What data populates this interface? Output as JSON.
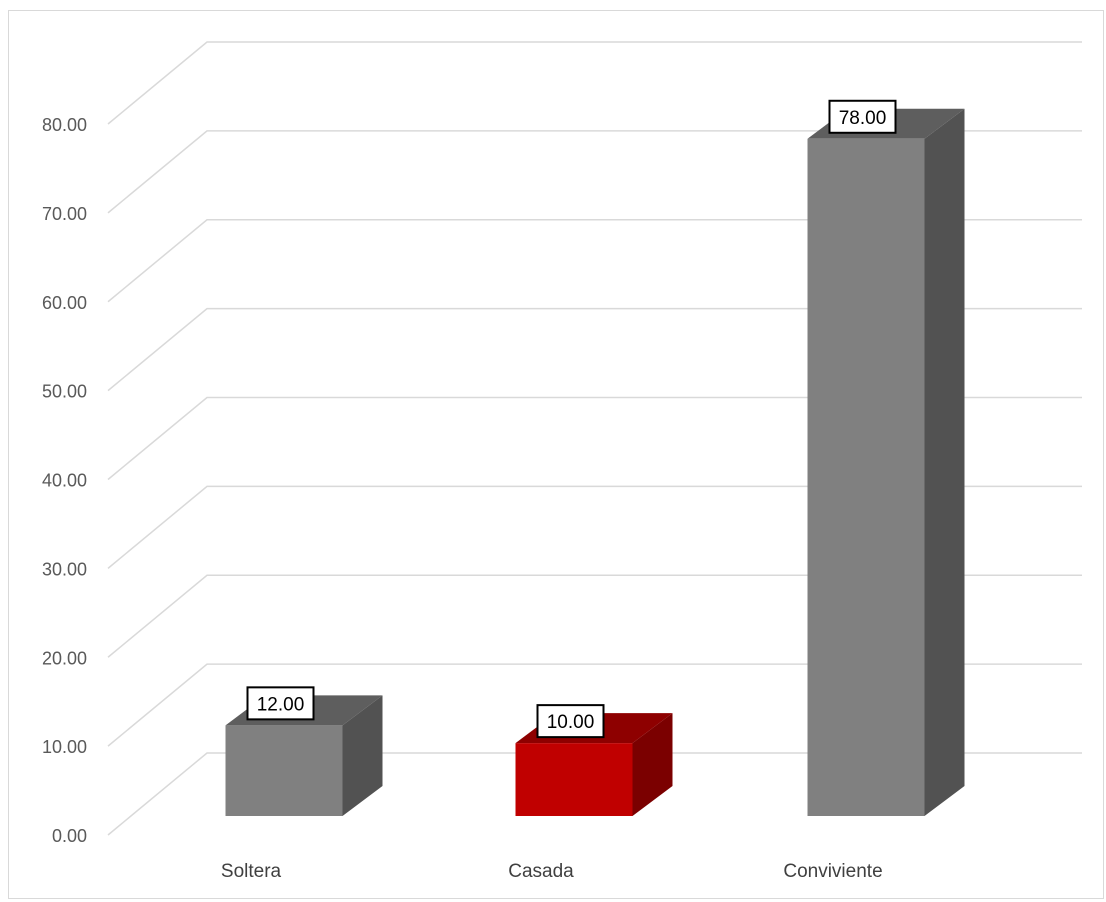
{
  "chart_data": {
    "type": "bar",
    "style": "3d-column",
    "categories": [
      "Soltera",
      "Casada",
      "Conviviente"
    ],
    "values": [
      12.0,
      10.0,
      78.0
    ],
    "data_labels": [
      "12.00",
      "10.00",
      "78.00"
    ],
    "y_ticks": [
      "0.00",
      "10.00",
      "20.00",
      "30.00",
      "40.00",
      "50.00",
      "60.00",
      "70.00",
      "80.00"
    ],
    "ylim": [
      0,
      80
    ],
    "grid": true,
    "legend": false,
    "title": "",
    "xlabel": "",
    "ylabel": "",
    "colors": {
      "default_front": "#808080",
      "default_side": "#525252",
      "default_top": "#5e5e5e",
      "highlight_front": "#c00000",
      "highlight_side": "#7b0000",
      "highlight_top": "#8e0000",
      "gridline": "#d9d9d9"
    },
    "highlight_index": 1
  }
}
